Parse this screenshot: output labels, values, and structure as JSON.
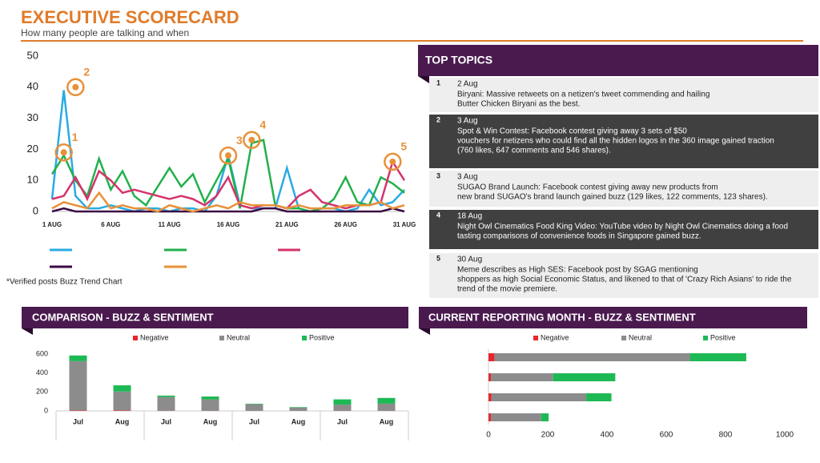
{
  "header": {
    "title": "EXECUTIVE SCORECARD",
    "subtitle": "How many people are talking and when"
  },
  "top_topics": {
    "title": "TOP TOPICS",
    "items": [
      {
        "number": "1",
        "date": "2 Aug",
        "lines": [
          "Biryani: Massive retweets on a netizen's tweet commending and hailing",
          "Butter Chicken Biryani as the best."
        ]
      },
      {
        "number": "2",
        "date": "3 Aug",
        "lines": [
          "Spot & Win Contest: Facebook contest giving away 3 sets of $50",
          "vouchers for netizens who could find all the hidden logos in the 360 image gained traction",
          "(760 likes, 647 comments and 546 shares)."
        ]
      },
      {
        "number": "3",
        "date": "3 Aug",
        "lines": [
          "SUGAO Brand Launch: Facebook contest giving away new products from",
          "new brand SUGAO's brand launch gained buzz (129 likes, 122 comments, 123 shares)."
        ]
      },
      {
        "number": "4",
        "date": "18 Aug",
        "lines": [
          "Night Owl Cinematics Food King Video: YouTube video by Night Owl Cinematics doing a food",
          "tasting comparisons of convenience foods in Singapore gained buzz."
        ]
      },
      {
        "number": "5",
        "date": "30 Aug",
        "lines": [
          "Meme describes as High SES: Facebook post by SGAG mentioning",
          "shoppers as high Social Economic Status, and likened to that of 'Crazy Rich Asians' to ride the",
          "trend of the movie premiere."
        ]
      }
    ]
  },
  "chart_data": [
    {
      "type": "line",
      "note": "*Verified posts Buzz Trend Chart",
      "categories": [
        "1 AUG",
        null,
        null,
        null,
        null,
        "6 AUG",
        null,
        null,
        null,
        null,
        "11 AUG",
        null,
        null,
        null,
        null,
        "16 AUG",
        null,
        null,
        null,
        null,
        "21 AUG",
        null,
        null,
        null,
        null,
        "26 AUG",
        null,
        null,
        null,
        null,
        "31 AUG"
      ],
      "ylim": [
        0,
        50
      ],
      "yticks": [
        0,
        10,
        20,
        30,
        40,
        50
      ],
      "series": [
        {
          "color": "#29abe2",
          "values": [
            4,
            39,
            5,
            1,
            1,
            2,
            1,
            0,
            1,
            1,
            0,
            1,
            1,
            0,
            5,
            18,
            2,
            1,
            1,
            1,
            14,
            1,
            0,
            1,
            1,
            0,
            1,
            7,
            2,
            3,
            7
          ]
        },
        {
          "color": "#22b04b",
          "values": [
            12,
            18,
            10,
            5,
            17,
            7,
            13,
            5,
            2,
            8,
            14,
            8,
            12,
            3,
            10,
            17,
            1,
            22,
            23,
            2,
            1,
            1,
            0,
            1,
            4,
            11,
            3,
            2,
            11,
            9,
            6
          ]
        },
        {
          "color": "#d6336c",
          "values": [
            4,
            5,
            11,
            4,
            13,
            10,
            6,
            7,
            6,
            5,
            4,
            5,
            4,
            2,
            5,
            11,
            2,
            1,
            2,
            2,
            1,
            5,
            7,
            3,
            2,
            1,
            2,
            2,
            3,
            16,
            10
          ]
        },
        {
          "color": "#3b0a45",
          "values": [
            0,
            1,
            0,
            0,
            0,
            0,
            0,
            0,
            0,
            0,
            0,
            0,
            0,
            0,
            0,
            0,
            0,
            0,
            1,
            1,
            0,
            0,
            0,
            0,
            0,
            0,
            0,
            0,
            0,
            1,
            0
          ]
        },
        {
          "color": "#e8913a",
          "values": [
            1,
            3,
            2,
            1,
            6,
            1,
            2,
            1,
            1,
            0,
            2,
            1,
            0,
            1,
            2,
            1,
            3,
            2,
            2,
            2,
            1,
            2,
            1,
            1,
            1,
            2,
            2,
            2,
            3,
            1,
            2
          ]
        }
      ],
      "annotations": [
        {
          "label": "1",
          "index": 1,
          "value": 19
        },
        {
          "label": "2",
          "index": 2,
          "value": 40
        },
        {
          "label": "3",
          "index": 15,
          "value": 18
        },
        {
          "label": "4",
          "index": 17,
          "value": 23
        },
        {
          "label": "5",
          "index": 29,
          "value": 16
        }
      ],
      "annotation_color": "#e8913a"
    },
    {
      "type": "stacked_bar",
      "title": "COMPARISON - BUZZ & SENTIMENT",
      "categories": [
        "Jul",
        "Aug",
        "Jul",
        "Aug",
        "Jul",
        "Aug",
        "Jul",
        "Aug"
      ],
      "ylim": [
        0,
        600
      ],
      "yticks": [
        0,
        200,
        400,
        600
      ],
      "series": [
        {
          "name": "Negative",
          "color": "#e8262b",
          "values": [
            5,
            5,
            2,
            2,
            1,
            1,
            2,
            2
          ]
        },
        {
          "name": "Neutral",
          "color": "#8c8c8c",
          "values": [
            520,
            200,
            145,
            120,
            70,
            35,
            65,
            75
          ]
        },
        {
          "name": "Positive",
          "color": "#1db954",
          "values": [
            60,
            65,
            15,
            30,
            5,
            5,
            55,
            60
          ]
        }
      ]
    },
    {
      "type": "stacked_barh",
      "title": "CURRENT REPORTING MONTH - BUZZ & SENTIMENT",
      "xlim": [
        0,
        1000
      ],
      "xticks": [
        0,
        200,
        400,
        600,
        800,
        1000
      ],
      "series": [
        {
          "name": "Negative",
          "color": "#e8262b",
          "values": [
            20,
            8,
            10,
            8
          ]
        },
        {
          "name": "Neutral",
          "color": "#8c8c8c",
          "values": [
            660,
            210,
            320,
            170
          ]
        },
        {
          "name": "Positive",
          "color": "#1db954",
          "values": [
            190,
            210,
            85,
            25
          ]
        }
      ]
    }
  ]
}
